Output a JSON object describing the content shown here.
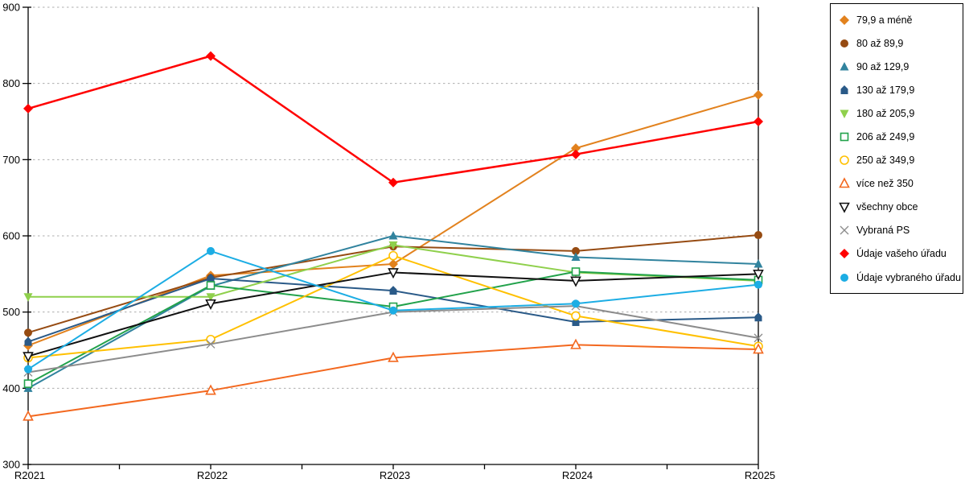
{
  "background": "#ffffff",
  "chart_data": {
    "type": "line",
    "title": "",
    "xlabel": "",
    "ylabel": "",
    "categories": [
      "R2021",
      "R2022",
      "R2023",
      "R2024",
      "R2025"
    ],
    "ylim": [
      300,
      900
    ],
    "yticks": [
      300,
      400,
      500,
      600,
      700,
      800,
      900
    ],
    "grid": "horizontal-dotted",
    "gridline_color": "#ADADAD",
    "axis_color": "#000000",
    "legend_position": "right",
    "series": [
      {
        "name": "79,9 a méně",
        "marker": "diamond",
        "fill": "filled",
        "color": "#E2821E",
        "values": [
          456,
          548,
          563,
          715,
          785
        ]
      },
      {
        "name": "80 až 89,9",
        "marker": "circle",
        "fill": "filled",
        "color": "#964B12",
        "values": [
          473,
          545,
          586,
          580,
          601
        ]
      },
      {
        "name": "90 až 129,9",
        "marker": "triangle-up",
        "fill": "filled",
        "color": "#31839E",
        "values": [
          400,
          534,
          600,
          572,
          563
        ]
      },
      {
        "name": "130 až 179,9",
        "marker": "house",
        "fill": "filled",
        "color": "#2A5A88",
        "values": [
          461,
          544,
          528,
          487,
          493
        ]
      },
      {
        "name": "180 až 205,9",
        "marker": "triangle-down",
        "fill": "filled",
        "color": "#8FD04C",
        "values": [
          520,
          520,
          588,
          552,
          541
        ]
      },
      {
        "name": "206 až 249,9",
        "marker": "square",
        "fill": "open",
        "color": "#22A24B",
        "values": [
          406,
          535,
          507,
          553,
          542
        ]
      },
      {
        "name": "250 až 349,9",
        "marker": "circle",
        "fill": "open",
        "color": "#FFC000",
        "values": [
          440,
          464,
          574,
          495,
          455
        ]
      },
      {
        "name": "více než 350",
        "marker": "triangle-up",
        "fill": "open",
        "color": "#F3681F",
        "values": [
          363,
          397,
          440,
          457,
          451
        ]
      },
      {
        "name": "všechny obce",
        "marker": "triangle-down",
        "fill": "open",
        "color": "#111111",
        "values": [
          442,
          511,
          552,
          541,
          550
        ]
      },
      {
        "name": "Vybraná PS",
        "marker": "x",
        "fill": "open",
        "color": "#8C8C8C",
        "values": [
          421,
          458,
          500,
          508,
          466
        ]
      },
      {
        "name": "Údaje vašeho úřadu",
        "marker": "diamond",
        "fill": "filled",
        "color": "#FF0000",
        "values": [
          767,
          836,
          670,
          707,
          750
        ]
      },
      {
        "name": "Údaje vybraného úřadu",
        "marker": "circle",
        "fill": "filled",
        "color": "#1CADE4",
        "values": [
          425,
          580,
          502,
          511,
          536
        ]
      }
    ]
  }
}
